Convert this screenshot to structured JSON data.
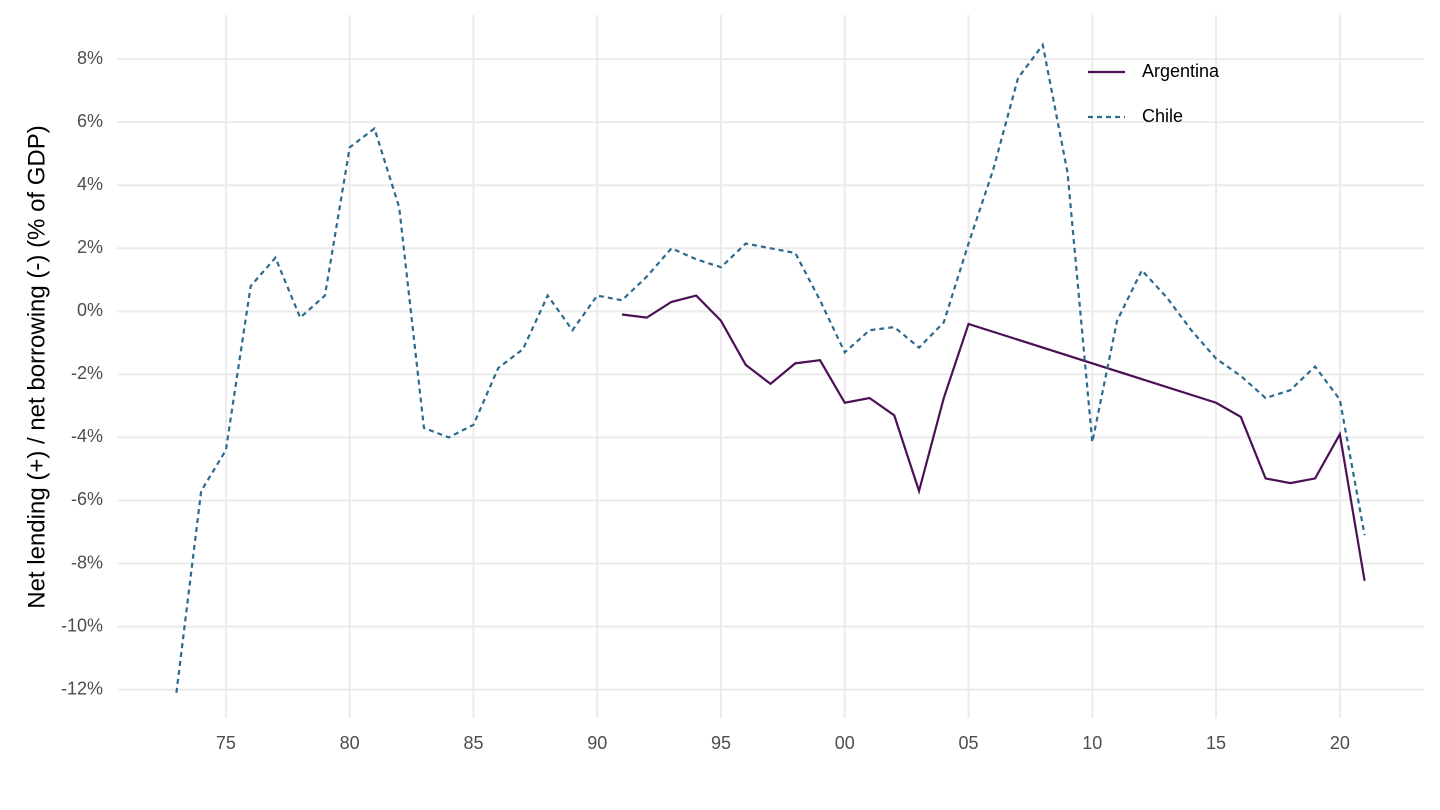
{
  "chart_data": {
    "type": "line",
    "y_label": "Net lending (+) / net borrowing (-) (% of GDP)",
    "xlim": [
      1970.6,
      2023.4
    ],
    "ylim": [
      -12.9,
      9.4
    ],
    "xticks": [
      {
        "value": 1975,
        "label": "75"
      },
      {
        "value": 1980,
        "label": "80"
      },
      {
        "value": 1985,
        "label": "85"
      },
      {
        "value": 1990,
        "label": "90"
      },
      {
        "value": 1995,
        "label": "95"
      },
      {
        "value": 2000,
        "label": "00"
      },
      {
        "value": 2005,
        "label": "05"
      },
      {
        "value": 2010,
        "label": "10"
      },
      {
        "value": 2015,
        "label": "15"
      },
      {
        "value": 2020,
        "label": "20"
      }
    ],
    "yticks": [
      {
        "value": -12,
        "label": "-12%"
      },
      {
        "value": -10,
        "label": "-10%"
      },
      {
        "value": -8,
        "label": "-8%"
      },
      {
        "value": -6,
        "label": "-6%"
      },
      {
        "value": -4,
        "label": "-4%"
      },
      {
        "value": -2,
        "label": "-2%"
      },
      {
        "value": 0,
        "label": "0%"
      },
      {
        "value": 2,
        "label": "2%"
      },
      {
        "value": 4,
        "label": "4%"
      },
      {
        "value": 6,
        "label": "6%"
      },
      {
        "value": 8,
        "label": "8%"
      }
    ],
    "grid": true,
    "legend": "top-right",
    "series": [
      {
        "name": "Argentina",
        "color": "#4b1055",
        "dash": "solid",
        "x": [
          1991,
          1992,
          1993,
          1994,
          1995,
          1996,
          1997,
          1998,
          1999,
          2000,
          2001,
          2002,
          2003,
          2004,
          2005,
          2015,
          2016,
          2017,
          2018,
          2019,
          2020,
          2021
        ],
        "values": [
          -0.1,
          -0.2,
          0.3,
          0.5,
          -0.3,
          -1.7,
          -2.3,
          -1.65,
          -1.55,
          -2.9,
          -2.75,
          -3.3,
          -5.7,
          -2.75,
          -0.4,
          -2.9,
          -3.35,
          -5.3,
          -5.45,
          -5.3,
          -3.9,
          -8.55
        ]
      },
      {
        "name": "Chile",
        "color": "#2c6b8e",
        "dash": "dotted",
        "x": [
          1973,
          1974,
          1975,
          1976,
          1977,
          1978,
          1979,
          1980,
          1981,
          1982,
          1983,
          1984,
          1985,
          1986,
          1987,
          1988,
          1989,
          1990,
          1991,
          1992,
          1993,
          1994,
          1995,
          1996,
          1997,
          1998,
          1999,
          2000,
          2001,
          2002,
          2003,
          2004,
          2005,
          2006,
          2007,
          2008,
          2009,
          2010,
          2011,
          2012,
          2013,
          2014,
          2015,
          2016,
          2017,
          2018,
          2019,
          2020,
          2021
        ],
        "values": [
          -12.1,
          -5.7,
          -4.4,
          0.8,
          1.7,
          -0.2,
          0.5,
          5.2,
          5.8,
          3.3,
          -3.7,
          -4.0,
          -3.6,
          -1.8,
          -1.2,
          0.5,
          -0.6,
          0.5,
          0.35,
          1.1,
          2.0,
          1.65,
          1.4,
          2.15,
          2.0,
          1.85,
          0.35,
          -1.3,
          -0.6,
          -0.5,
          -1.15,
          -0.35,
          2.15,
          4.5,
          7.4,
          8.45,
          4.4,
          -4.15,
          -0.3,
          1.3,
          0.45,
          -0.6,
          -1.5,
          -2.05,
          -2.75,
          -2.5,
          -1.75,
          -2.8,
          -7.1
        ]
      }
    ]
  }
}
